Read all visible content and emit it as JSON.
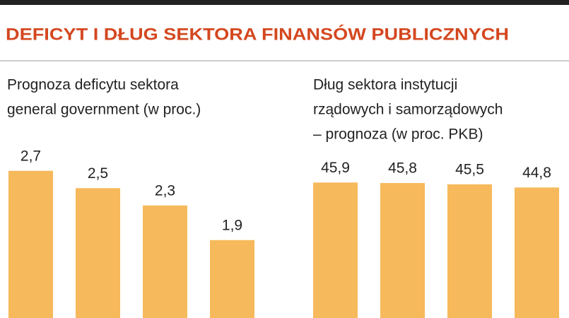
{
  "title": "DEFICYT I DŁUG SEKTORA FINANSÓW PUBLICZNYCH",
  "chart_data": [
    {
      "type": "bar",
      "title_lines": [
        "Prognoza deficytu sektora",
        "general government (w proc.)"
      ],
      "values": [
        2.7,
        2.5,
        2.3,
        1.9
      ],
      "value_labels": [
        "2,7",
        "2,5",
        "2,3",
        "1,9"
      ],
      "color": "#f6b95b",
      "ylim": [
        1,
        3
      ]
    },
    {
      "type": "bar",
      "title_lines": [
        "Dług sektora instytucji",
        "rządowych i samorządowych",
        "– prognoza (w proc. PKB)"
      ],
      "values": [
        45.9,
        45.8,
        45.5,
        44.8
      ],
      "value_labels": [
        "45,9",
        "45,8",
        "45,5",
        "44,8"
      ],
      "color": "#f6b95b",
      "ylim": [
        16,
        50
      ]
    }
  ]
}
